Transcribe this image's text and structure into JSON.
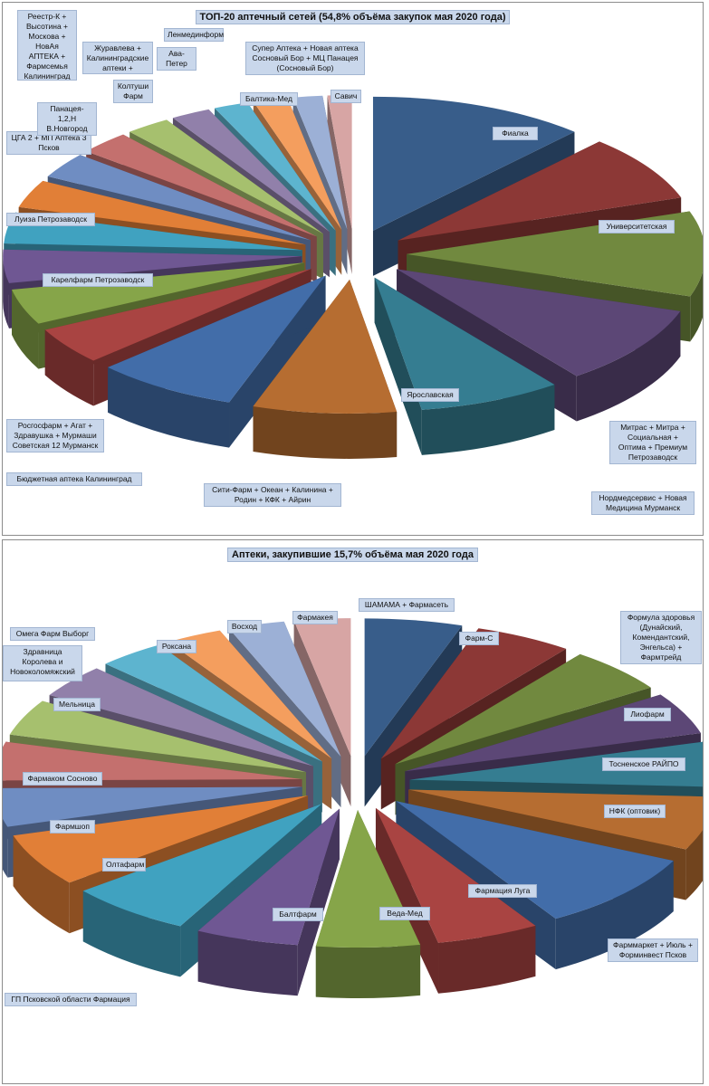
{
  "chart_data": [
    {
      "type": "pie",
      "title": "ТОП-20 аптечный сетей (54,8% объёма закупок мая 2020 года)",
      "categories": [
        "Фиалка",
        "Университетская",
        "Митрас + Митра + Социальная + Оптима + Премиум Петрозаводск",
        "Нордмедсервис + Новая Медицина Мурманск",
        "Ярославская",
        "Сити-Фарм + Океан + Калинина + Родин + КФК + Айрин",
        "Бюджетная аптека Калининград",
        "Росгосфарм + Агат + Здравушка + Мурмаши Советская 12 Мурманск",
        "Карелфарм Петрозаводск",
        "Луиза Петрозаводск",
        "ЦГА 2 + МП Аптека 3 Псков",
        "Панацея- 1,2,Н В.Новгород",
        "Реестр-К + Высотина + Москова + НовАя АПТЕКА + Фармсемья Калининград",
        "Колтуши Фарм",
        "Журавлева + Калининградские аптеки + Фрэшлайф",
        "Ава-Петер",
        "Ленмединформ",
        "Балтика-Мед",
        "Супер Аптека + Новая аптека Сосновый Бор + МЦ Панацея (Сосновый Бор)",
        "Савич"
      ],
      "values": [
        12.6,
        8.6,
        11.0,
        10.3,
        8.3,
        8.3,
        8.3,
        4.8,
        4.6,
        4.3,
        4.0,
        3.6,
        3.3,
        3.0,
        2.6,
        2.3,
        2.0,
        2.0,
        1.7,
        1.4
      ],
      "colors": [
        "#385d8a",
        "#8c3836",
        "#71893f",
        "#5c4776",
        "#357d91",
        "#b66d31",
        "#426da9",
        "#a94442",
        "#86a549",
        "#6f5793",
        "#40a2c0",
        "#e17f37",
        "#6f8dc2",
        "#c4706e",
        "#a6c06e",
        "#9180aa",
        "#5db4cf",
        "#f49e5e",
        "#9cb0d6",
        "#d7a5a4"
      ],
      "legend": "none"
    },
    {
      "type": "pie",
      "title": "Аптеки, закупившие 15,7% объёма мая 2020 года",
      "categories": [
        "ШАМАМА + Фармасеть",
        "Фарм-С",
        "Формула здоровья (Дунайский, Комендантский, Энгельса) + Фармтрейд",
        "Лиофарм",
        "Тосненское РАЙПО",
        "НФК (оптовик)",
        "Фарммаркет + Июль + Форминвест Псков",
        "Фармация Луга",
        "Веда-Мед",
        "Балтфарм",
        "ГП Псковской области Фармация",
        "Олтафарм",
        "Фармшоп",
        "Фармаком Сосново",
        "Мельница",
        "Здравница Королева и Новоколомяжский",
        "Омега Фарм Выборг",
        "Роксана",
        "Восход",
        "Фармакея"
      ],
      "values": [
        5.2,
        5.2,
        5.4,
        5.0,
        5.4,
        6.4,
        9.3,
        5.5,
        5.5,
        5.5,
        6.6,
        6.3,
        4.6,
        4.6,
        4.3,
        4.0,
        3.6,
        3.0,
        3.0,
        3.0
      ],
      "colors": [
        "#385d8a",
        "#8c3836",
        "#71893f",
        "#5c4776",
        "#357d91",
        "#b66d31",
        "#426da9",
        "#a94442",
        "#86a549",
        "#6f5793",
        "#40a2c0",
        "#e17f37",
        "#6f8dc2",
        "#c4706e",
        "#a6c06e",
        "#9180aa",
        "#5db4cf",
        "#f49e5e",
        "#9cb0d6",
        "#d7a5a4"
      ],
      "legend": "none"
    }
  ]
}
